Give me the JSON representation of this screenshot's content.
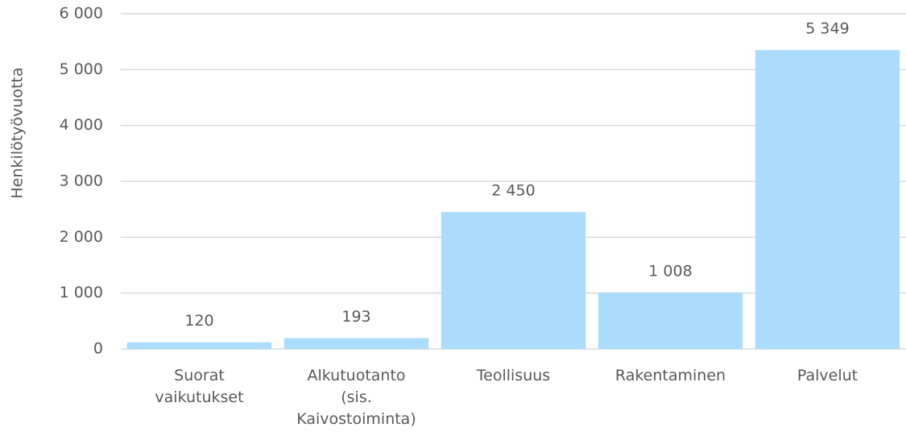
{
  "chart_data": {
    "type": "bar",
    "y_axis_label": "Henkilötyövuotta",
    "categories": [
      "Suorat vaikutukset",
      "Alkutuotanto (sis. Kaivostoiminta)",
      "Teollisuus",
      "Rakentaminen",
      "Palvelut"
    ],
    "values": [
      120,
      193,
      2450,
      1008,
      5349
    ],
    "value_labels": [
      "120",
      "193",
      "2 450",
      "1 008",
      "5 349"
    ],
    "color": "#abdcfd",
    "ylim": [
      0,
      6000
    ],
    "yticks": [
      0,
      {
        "value": 1000,
        "label": "1 000"
      },
      {
        "value": 2000,
        "label": "2 000"
      },
      {
        "value": 3000,
        "label": "3 000"
      },
      {
        "value": 4000,
        "label": "4 000"
      },
      {
        "value": 5000,
        "label": "5 000"
      },
      {
        "value": 6000,
        "label": "6 000"
      }
    ],
    "grid": true
  }
}
